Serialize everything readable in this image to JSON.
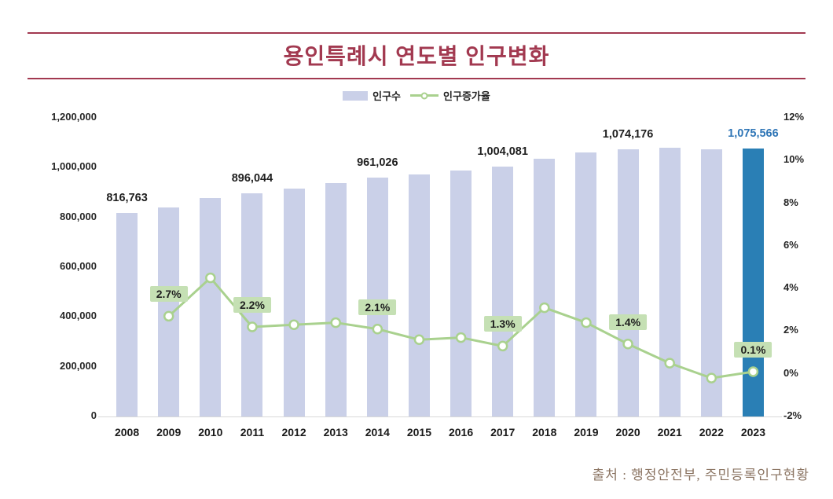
{
  "page": {
    "title": "용인특례시 연도별 인구변화",
    "source": "출처 : 행정안전부, 주민등록인구현황"
  },
  "legend": {
    "bar_label": "인구수",
    "line_label": "인구증가율"
  },
  "colors": {
    "title": "#A23950",
    "rule": "#A23950",
    "bar": "#CAD0E8",
    "bar_highlight": "#2A7FB5",
    "bar_label": "#1F1F1F",
    "bar_label_highlight": "#2E75B6",
    "line": "#A9D18E",
    "marker_fill": "#FFFFFF",
    "rate_label_bg": "#C5E0B4",
    "rate_label_text": "#1F1F1F",
    "axis_text": "#262626",
    "source_text": "#8A7361"
  },
  "chart_data": {
    "type": "bar+line combo",
    "title": "용인특례시 연도별 인구변화",
    "grid": false,
    "legend_position": "top-center",
    "categories": [
      "2008",
      "2009",
      "2010",
      "2011",
      "2012",
      "2013",
      "2014",
      "2015",
      "2016",
      "2017",
      "2018",
      "2019",
      "2020",
      "2021",
      "2022",
      "2023"
    ],
    "series": [
      {
        "name": "인구수",
        "type": "bar",
        "axis": "left",
        "values": [
          816763,
          839831,
          876765,
          896044,
          916402,
          938093,
          961026,
          971327,
          989837,
          1004081,
          1035033,
          1059609,
          1074176,
          1079000,
          1074000,
          1075566
        ]
      },
      {
        "name": "인구증가율",
        "type": "line",
        "axis": "right",
        "values": [
          null,
          2.7,
          4.5,
          2.2,
          2.3,
          2.4,
          2.1,
          1.6,
          1.7,
          1.3,
          3.1,
          2.4,
          1.4,
          0.5,
          -0.2,
          0.1
        ]
      }
    ],
    "bar_value_labels": [
      {
        "index": 0,
        "text": "816,763"
      },
      {
        "index": 3,
        "text": "896,044"
      },
      {
        "index": 6,
        "text": "961,026"
      },
      {
        "index": 9,
        "text": "1,004,081"
      },
      {
        "index": 12,
        "text": "1,074,176"
      },
      {
        "index": 15,
        "text": "1,075,566",
        "highlight": true
      }
    ],
    "rate_labels": [
      {
        "index": 1,
        "text": "2.7%"
      },
      {
        "index": 3,
        "text": "2.2%"
      },
      {
        "index": 6,
        "text": "2.1%"
      },
      {
        "index": 9,
        "text": "1.3%"
      },
      {
        "index": 12,
        "text": "1.4%"
      },
      {
        "index": 15,
        "text": "0.1%"
      }
    ],
    "highlight_index": 15,
    "y_left": {
      "min": 0,
      "max": 1200000,
      "step": 200000,
      "tick_labels": [
        "0",
        "200,000",
        "400,000",
        "600,000",
        "800,000",
        "1,000,000",
        "1,200,000"
      ]
    },
    "y_right": {
      "min": -2,
      "max": 12,
      "step": 2,
      "tick_labels": [
        "-2%",
        "0%",
        "2%",
        "4%",
        "6%",
        "8%",
        "10%",
        "12%"
      ]
    }
  }
}
